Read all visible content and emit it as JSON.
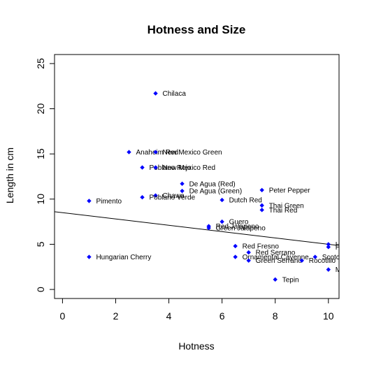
{
  "chart_data": {
    "type": "scatter",
    "title": "Hotness and Size",
    "xlabel": "Hotness",
    "ylabel": "Length in cm",
    "xlim": [
      -0.3,
      10.4
    ],
    "ylim": [
      -1,
      26
    ],
    "xticks": [
      0,
      2,
      4,
      6,
      8,
      10
    ],
    "yticks": [
      0,
      5,
      10,
      15,
      20,
      25
    ],
    "grid": false,
    "point_color": "#0000ff",
    "regression_line": {
      "intercept": 8.5,
      "slope": -0.35
    },
    "points": [
      {
        "x": 3.5,
        "y": 21.7,
        "label": "Chilaca"
      },
      {
        "x": 2.5,
        "y": 15.2,
        "label": "Anaheim Red"
      },
      {
        "x": 3.5,
        "y": 15.2,
        "label": "New Mexico Green"
      },
      {
        "x": 3.0,
        "y": 13.5,
        "label": "Poblano Rojo"
      },
      {
        "x": 3.5,
        "y": 13.5,
        "label": "New Mexico Red"
      },
      {
        "x": 4.5,
        "y": 11.7,
        "label": "De Agua (Red)"
      },
      {
        "x": 4.5,
        "y": 10.9,
        "label": "De Agua (Green)"
      },
      {
        "x": 7.5,
        "y": 11.0,
        "label": "Peter Pepper"
      },
      {
        "x": 3.5,
        "y": 10.4,
        "label": "Chawa"
      },
      {
        "x": 3.0,
        "y": 10.2,
        "label": "Poblano Verde"
      },
      {
        "x": 1.0,
        "y": 9.8,
        "label": "Pimento"
      },
      {
        "x": 6.0,
        "y": 9.9,
        "label": "Dutch Red"
      },
      {
        "x": 7.5,
        "y": 9.3,
        "label": "Thai Green"
      },
      {
        "x": 7.5,
        "y": 8.8,
        "label": "Thai Red"
      },
      {
        "x": 6.0,
        "y": 7.5,
        "label": "Guero"
      },
      {
        "x": 5.5,
        "y": 7.0,
        "label": "Red Jalapeno"
      },
      {
        "x": 5.5,
        "y": 6.8,
        "label": "Green Jalapeno"
      },
      {
        "x": 6.5,
        "y": 4.8,
        "label": "Red Fresno"
      },
      {
        "x": 7.0,
        "y": 4.1,
        "label": "Red Serrano"
      },
      {
        "x": 6.5,
        "y": 3.6,
        "label": "Ornamental Cayenne"
      },
      {
        "x": 7.0,
        "y": 3.2,
        "label": "Green Serrano"
      },
      {
        "x": 9.0,
        "y": 3.2,
        "label": "Rocotillo"
      },
      {
        "x": 9.5,
        "y": 3.6,
        "label": "Scotch Bonnet"
      },
      {
        "x": 10.0,
        "y": 5.0,
        "label": "Habanero Orange"
      },
      {
        "x": 10.0,
        "y": 4.7,
        "label": "Habanero Red"
      },
      {
        "x": 10.0,
        "y": 2.2,
        "label": "Mako Akokosrade"
      },
      {
        "x": 1.0,
        "y": 3.6,
        "label": "Hungarian Cherry"
      },
      {
        "x": 8.0,
        "y": 1.1,
        "label": "Tepin"
      }
    ]
  }
}
